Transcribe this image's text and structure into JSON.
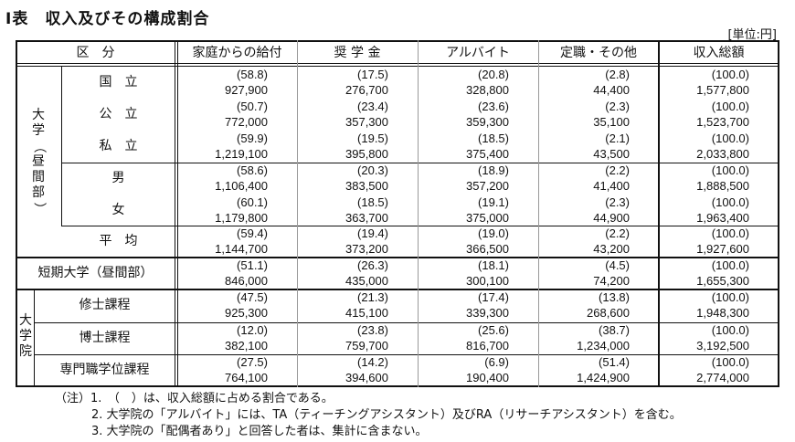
{
  "title": "I表　収入及びその構成割合",
  "unit": "[単位:円]",
  "headers": [
    "区　分",
    "家庭からの給付",
    "奨 学 金",
    "アルバイト",
    "定職・その他",
    "収入総額"
  ],
  "group_labels": {
    "university": "大学（昼間部）",
    "graduate": "大学院"
  },
  "rows": [
    {
      "label": "国　立",
      "pct": [
        "(58.8)",
        "(17.5)",
        "(20.8)",
        "(2.8)",
        "(100.0)"
      ],
      "val": [
        "927,900",
        "276,700",
        "328,800",
        "44,400",
        "1,577,800"
      ]
    },
    {
      "label": "公　立",
      "pct": [
        "(50.7)",
        "(23.4)",
        "(23.6)",
        "(2.3)",
        "(100.0)"
      ],
      "val": [
        "772,000",
        "357,300",
        "359,300",
        "35,100",
        "1,523,700"
      ]
    },
    {
      "label": "私　立",
      "pct": [
        "(59.9)",
        "(19.5)",
        "(18.5)",
        "(2.1)",
        "(100.0)"
      ],
      "val": [
        "1,219,100",
        "395,800",
        "375,400",
        "43,500",
        "2,033,800"
      ]
    },
    {
      "label": "男",
      "pct": [
        "(58.6)",
        "(20.3)",
        "(18.9)",
        "(2.2)",
        "(100.0)"
      ],
      "val": [
        "1,106,400",
        "383,500",
        "357,200",
        "41,400",
        "1,888,500"
      ]
    },
    {
      "label": "女",
      "pct": [
        "(60.1)",
        "(18.5)",
        "(19.1)",
        "(2.3)",
        "(100.0)"
      ],
      "val": [
        "1,179,800",
        "363,700",
        "375,000",
        "44,900",
        "1,963,400"
      ]
    },
    {
      "label": "平　均",
      "pct": [
        "(59.4)",
        "(19.4)",
        "(19.0)",
        "(2.2)",
        "(100.0)"
      ],
      "val": [
        "1,144,700",
        "373,200",
        "366,500",
        "43,200",
        "1,927,600"
      ]
    },
    {
      "label": "短期大学（昼間部）",
      "pct": [
        "(51.1)",
        "(26.3)",
        "(18.1)",
        "(4.5)",
        "(100.0)"
      ],
      "val": [
        "846,000",
        "435,000",
        "300,100",
        "74,200",
        "1,655,300"
      ]
    },
    {
      "label": "修士課程",
      "pct": [
        "(47.5)",
        "(21.3)",
        "(17.4)",
        "(13.8)",
        "(100.0)"
      ],
      "val": [
        "925,300",
        "415,100",
        "339,300",
        "268,600",
        "1,948,300"
      ]
    },
    {
      "label": "博士課程",
      "pct": [
        "(12.0)",
        "(23.8)",
        "(25.6)",
        "(38.7)",
        "(100.0)"
      ],
      "val": [
        "382,100",
        "759,700",
        "816,700",
        "1,234,000",
        "3,192,500"
      ]
    },
    {
      "label": "専門職学位課程",
      "pct": [
        "(27.5)",
        "(14.2)",
        "(6.9)",
        "(51.4)",
        "(100.0)"
      ],
      "val": [
        "764,100",
        "394,600",
        "190,400",
        "1,424,900",
        "2,774,000"
      ]
    }
  ],
  "notes": [
    "（注）1.　（　）は、収入総額に占める割合である。",
    "2. 大学院の「アルバイト」には、TA（ティーチングアシスタント）及びRA（リサーチアシスタント）を含む。",
    "3. 大学院の「配偶者あり」と回答した者は、集計に含まない。"
  ]
}
